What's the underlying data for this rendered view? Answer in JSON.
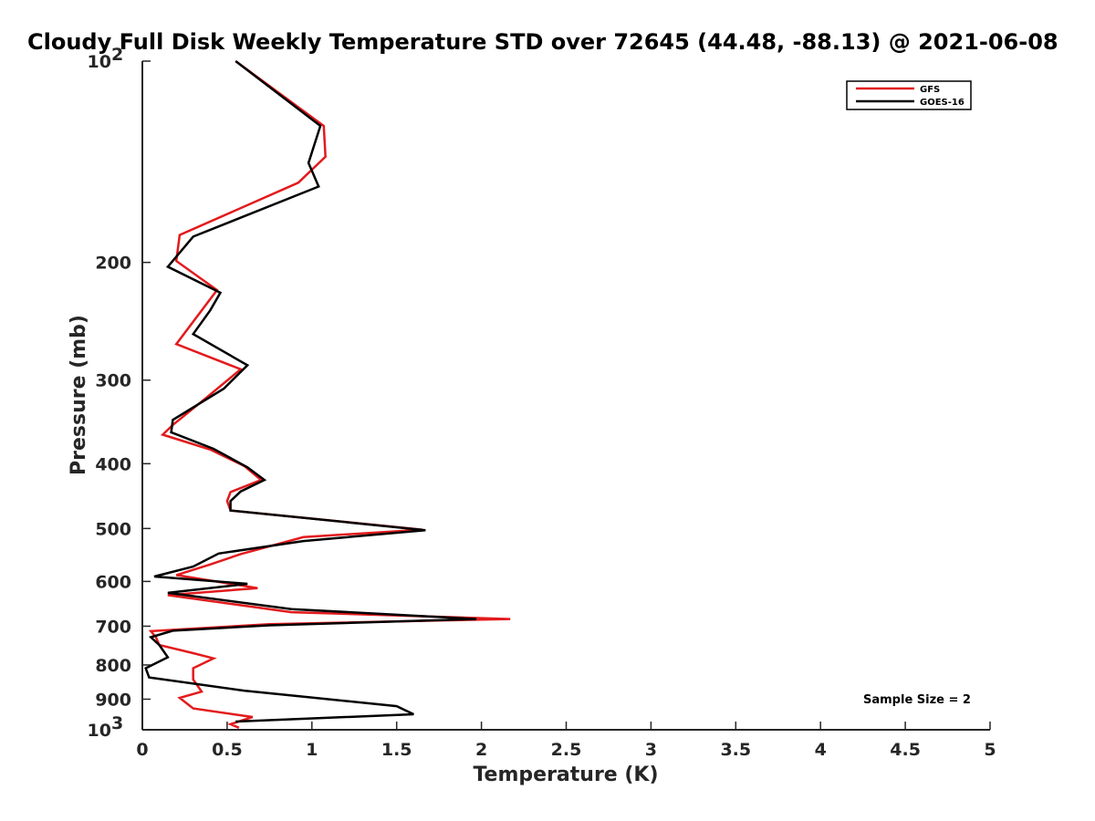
{
  "chart_data": {
    "type": "line",
    "title": "Cloudy Full Disk Weekly Temperature STD over 72645 (44.48, -88.13) @ 2021-06-08",
    "xlabel": "Temperature (K)",
    "ylabel": "Pressure (mb)",
    "xlim": [
      0,
      5
    ],
    "ylim": [
      100,
      1000
    ],
    "y_scale": "log",
    "y_reversed": true,
    "grid": false,
    "legend_position": "top-right",
    "x_ticks": [
      "0",
      "0.5",
      "1",
      "1.5",
      "2",
      "2.5",
      "3",
      "3.5",
      "4",
      "4.5",
      "5"
    ],
    "x_tick_values": [
      0,
      0.5,
      1,
      1.5,
      2,
      2.5,
      3,
      3.5,
      4,
      4.5,
      5
    ],
    "y_ticks": [
      {
        "value": 100,
        "label": "10",
        "sup": "2"
      },
      {
        "value": 200,
        "label": "200",
        "sup": ""
      },
      {
        "value": 300,
        "label": "300",
        "sup": ""
      },
      {
        "value": 400,
        "label": "400",
        "sup": ""
      },
      {
        "value": 500,
        "label": "500",
        "sup": ""
      },
      {
        "value": 600,
        "label": "600",
        "sup": ""
      },
      {
        "value": 700,
        "label": "700",
        "sup": ""
      },
      {
        "value": 800,
        "label": "800",
        "sup": ""
      },
      {
        "value": 900,
        "label": "900",
        "sup": ""
      },
      {
        "value": 1000,
        "label": "10",
        "sup": "3"
      }
    ],
    "annotation": "Sample Size = 2",
    "series": [
      {
        "name": "GFS",
        "color": "#e31a1c",
        "points": [
          [
            0.55,
            100
          ],
          [
            1.07,
            125
          ],
          [
            1.08,
            139
          ],
          [
            0.92,
            152
          ],
          [
            0.22,
            182
          ],
          [
            0.2,
            199
          ],
          [
            0.44,
            220
          ],
          [
            0.2,
            265
          ],
          [
            0.58,
            289
          ],
          [
            0.35,
            323
          ],
          [
            0.18,
            350
          ],
          [
            0.12,
            362
          ],
          [
            0.4,
            381
          ],
          [
            0.6,
            403
          ],
          [
            0.7,
            423
          ],
          [
            0.52,
            441
          ],
          [
            0.5,
            455
          ],
          [
            0.52,
            470
          ],
          [
            1.65,
            502
          ],
          [
            0.95,
            515
          ],
          [
            0.58,
            546
          ],
          [
            0.4,
            566
          ],
          [
            0.2,
            587
          ],
          [
            0.68,
            614
          ],
          [
            0.15,
            629
          ],
          [
            0.88,
            667
          ],
          [
            2.17,
            683
          ],
          [
            0.75,
            695
          ],
          [
            0.05,
            712
          ],
          [
            0.08,
            727
          ],
          [
            0.1,
            747
          ],
          [
            0.3,
            768
          ],
          [
            0.42,
            782
          ],
          [
            0.3,
            809
          ],
          [
            0.3,
            841
          ],
          [
            0.35,
            877
          ],
          [
            0.22,
            896
          ],
          [
            0.3,
            929
          ],
          [
            0.65,
            957
          ],
          [
            0.52,
            981
          ],
          [
            0.57,
            993
          ]
        ]
      },
      {
        "name": "GOES-16",
        "color": "#000000",
        "points": [
          [
            0.55,
            100
          ],
          [
            1.05,
            125
          ],
          [
            0.98,
            142
          ],
          [
            1.04,
            154
          ],
          [
            0.3,
            183
          ],
          [
            0.15,
            203
          ],
          [
            0.46,
            222
          ],
          [
            0.4,
            236
          ],
          [
            0.3,
            256
          ],
          [
            0.62,
            285
          ],
          [
            0.48,
            309
          ],
          [
            0.18,
            344
          ],
          [
            0.17,
            359
          ],
          [
            0.42,
            380
          ],
          [
            0.62,
            405
          ],
          [
            0.72,
            423
          ],
          [
            0.58,
            440
          ],
          [
            0.52,
            455
          ],
          [
            0.52,
            470
          ],
          [
            1.67,
            503
          ],
          [
            0.95,
            522
          ],
          [
            0.45,
            545
          ],
          [
            0.3,
            570
          ],
          [
            0.07,
            590
          ],
          [
            0.62,
            605
          ],
          [
            0.15,
            624
          ],
          [
            0.88,
            660
          ],
          [
            1.97,
            683
          ],
          [
            0.75,
            698
          ],
          [
            0.18,
            711
          ],
          [
            0.05,
            727
          ],
          [
            0.1,
            747
          ],
          [
            0.15,
            779
          ],
          [
            0.02,
            809
          ],
          [
            0.04,
            835
          ],
          [
            0.6,
            874
          ],
          [
            1.5,
            922
          ],
          [
            1.6,
            948
          ],
          [
            0.55,
            972
          ]
        ]
      }
    ]
  }
}
